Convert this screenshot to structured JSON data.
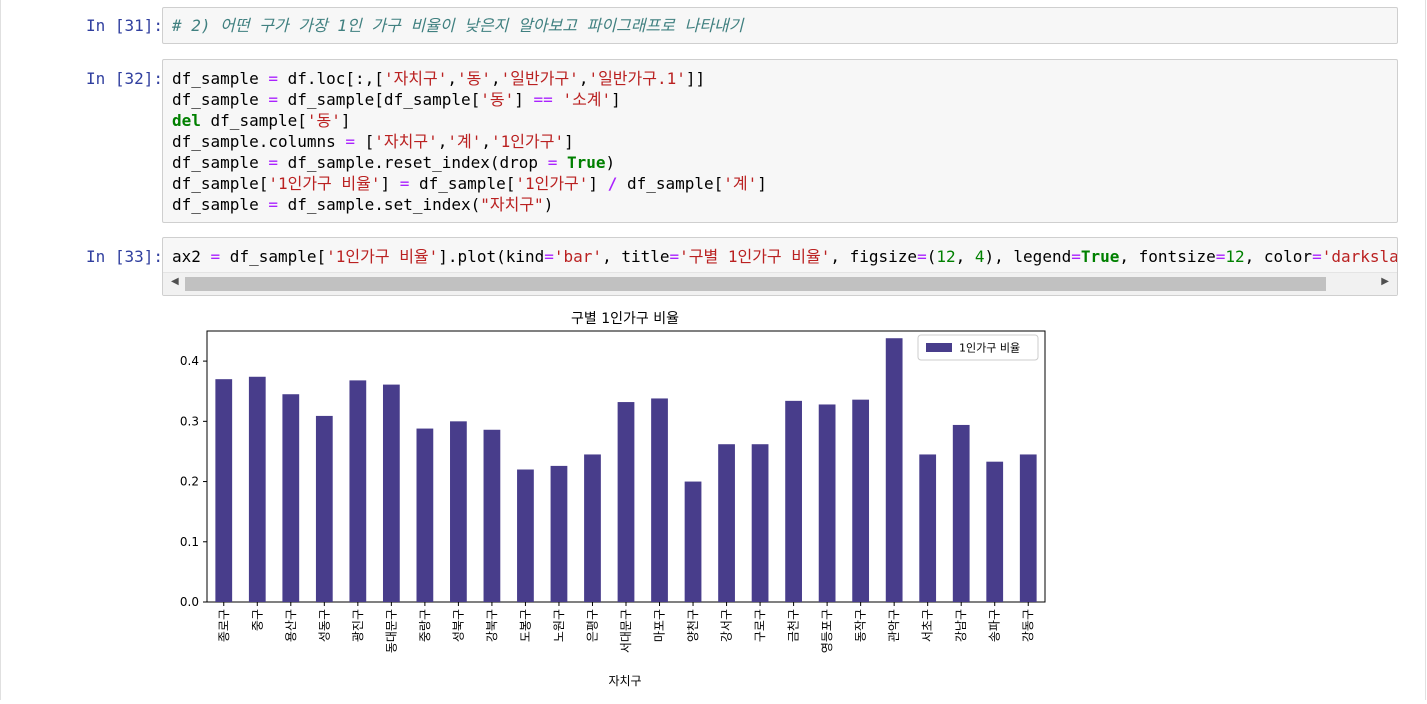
{
  "cells": [
    {
      "prompt": "In [31]:",
      "lines": [
        [
          {
            "t": "# 2) 어떤 구가 가장 1인 가구 비율이 낮은지 알아보고 파이그래프로 나타내기",
            "c": "cm-comment"
          }
        ]
      ]
    },
    {
      "prompt": "In [32]:",
      "lines": [
        [
          {
            "t": "df_sample "
          },
          {
            "t": "=",
            "c": "cm-op"
          },
          {
            "t": " df.loc[:,["
          },
          {
            "t": "'자치구'",
            "c": "cm-str"
          },
          {
            "t": ","
          },
          {
            "t": "'동'",
            "c": "cm-str"
          },
          {
            "t": ","
          },
          {
            "t": "'일반가구'",
            "c": "cm-str"
          },
          {
            "t": ","
          },
          {
            "t": "'일반가구.1'",
            "c": "cm-str"
          },
          {
            "t": "]]"
          }
        ],
        [
          {
            "t": "df_sample "
          },
          {
            "t": "=",
            "c": "cm-op"
          },
          {
            "t": " df_sample[df_sample["
          },
          {
            "t": "'동'",
            "c": "cm-str"
          },
          {
            "t": "] "
          },
          {
            "t": "==",
            "c": "cm-op"
          },
          {
            "t": " "
          },
          {
            "t": "'소계'",
            "c": "cm-str"
          },
          {
            "t": "]"
          }
        ],
        [
          {
            "t": "del",
            "c": "cm-kw"
          },
          {
            "t": " df_sample["
          },
          {
            "t": "'동'",
            "c": "cm-str"
          },
          {
            "t": "]"
          }
        ],
        [
          {
            "t": "df_sample.columns "
          },
          {
            "t": "=",
            "c": "cm-op"
          },
          {
            "t": " ["
          },
          {
            "t": "'자치구'",
            "c": "cm-str"
          },
          {
            "t": ","
          },
          {
            "t": "'계'",
            "c": "cm-str"
          },
          {
            "t": ","
          },
          {
            "t": "'1인가구'",
            "c": "cm-str"
          },
          {
            "t": "]"
          }
        ],
        [
          {
            "t": "df_sample "
          },
          {
            "t": "=",
            "c": "cm-op"
          },
          {
            "t": " df_sample.reset_index(drop "
          },
          {
            "t": "=",
            "c": "cm-op"
          },
          {
            "t": " "
          },
          {
            "t": "True",
            "c": "cm-kw"
          },
          {
            "t": ")"
          }
        ],
        [
          {
            "t": "df_sample["
          },
          {
            "t": "'1인가구 비율'",
            "c": "cm-str"
          },
          {
            "t": "] "
          },
          {
            "t": "=",
            "c": "cm-op"
          },
          {
            "t": " df_sample["
          },
          {
            "t": "'1인가구'",
            "c": "cm-str"
          },
          {
            "t": "] "
          },
          {
            "t": "/",
            "c": "cm-op-bold"
          },
          {
            "t": " df_sample["
          },
          {
            "t": "'계'",
            "c": "cm-str"
          },
          {
            "t": "]"
          }
        ],
        [
          {
            "t": "df_sample "
          },
          {
            "t": "=",
            "c": "cm-op"
          },
          {
            "t": " df_sample.set_index("
          },
          {
            "t": "\"자치구\"",
            "c": "cm-str"
          },
          {
            "t": ")"
          }
        ]
      ]
    },
    {
      "prompt": "In [33]:",
      "lines": [
        [
          {
            "t": "ax2 "
          },
          {
            "t": "=",
            "c": "cm-op"
          },
          {
            "t": " df_sample["
          },
          {
            "t": "'1인가구 비율'",
            "c": "cm-str"
          },
          {
            "t": "].plot(kind"
          },
          {
            "t": "=",
            "c": "cm-op"
          },
          {
            "t": "'bar'",
            "c": "cm-str"
          },
          {
            "t": ", title"
          },
          {
            "t": "=",
            "c": "cm-op"
          },
          {
            "t": "'구별 1인가구 비율'",
            "c": "cm-str"
          },
          {
            "t": ", figsize"
          },
          {
            "t": "=",
            "c": "cm-op"
          },
          {
            "t": "("
          },
          {
            "t": "12",
            "c": "cm-num"
          },
          {
            "t": ", "
          },
          {
            "t": "4",
            "c": "cm-num"
          },
          {
            "t": "), legend"
          },
          {
            "t": "=",
            "c": "cm-op"
          },
          {
            "t": "True",
            "c": "cm-kw"
          },
          {
            "t": ", fontsize"
          },
          {
            "t": "=",
            "c": "cm-op"
          },
          {
            "t": "12",
            "c": "cm-num"
          },
          {
            "t": ", color"
          },
          {
            "t": "=",
            "c": "cm-op"
          },
          {
            "t": "'darkslateb",
            "c": "cm-str"
          }
        ]
      ]
    }
  ],
  "scroll": {
    "left_arrow": "◀",
    "right_arrow": "▶"
  },
  "chart_data": {
    "type": "bar",
    "title": "구별 1인가구 비율",
    "xlabel": "자치구",
    "ylabel": "",
    "ylim": [
      0,
      0.45
    ],
    "yticks": [
      "0.0",
      "0.1",
      "0.2",
      "0.3",
      "0.4"
    ],
    "grid": false,
    "legend_position": "top-right",
    "color": "#483d8b",
    "categories": [
      "종로구",
      "중구",
      "용산구",
      "성동구",
      "광진구",
      "동대문구",
      "중랑구",
      "성북구",
      "강북구",
      "도봉구",
      "노원구",
      "은평구",
      "서대문구",
      "마포구",
      "양천구",
      "강서구",
      "구로구",
      "금천구",
      "영등포구",
      "동작구",
      "관악구",
      "서초구",
      "강남구",
      "송파구",
      "강동구"
    ],
    "series": [
      {
        "name": "1인가구 비율",
        "values": [
          0.37,
          0.374,
          0.345,
          0.309,
          0.368,
          0.361,
          0.288,
          0.3,
          0.286,
          0.22,
          0.226,
          0.245,
          0.332,
          0.338,
          0.2,
          0.262,
          0.262,
          0.334,
          0.328,
          0.336,
          0.438,
          0.245,
          0.294,
          0.233,
          0.245
        ]
      }
    ]
  }
}
